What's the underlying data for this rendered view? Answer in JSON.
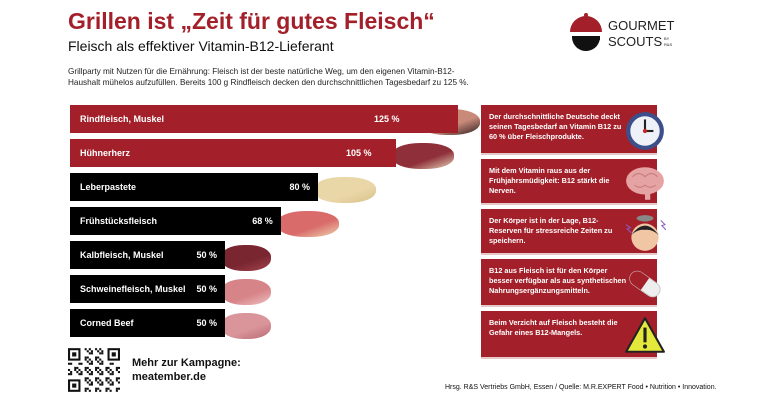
{
  "header": {
    "title": "Grillen ist „Zeit für gutes Fleisch“",
    "subtitle": "Fleisch als effektiver Vitamin-B12-Lieferant",
    "intro": "Grillparty mit Nutzen für die Ernährung: Fleisch ist der beste natürliche Weg, um den eigenen Vitamin-B12-Haushalt mühelos aufzufüllen. Bereits 100 g Rindfleisch decken den durchschnittlichen Tagesbedarf zu 125 %."
  },
  "logo": {
    "line1": "GOURMET",
    "line2": "SCOUTS",
    "suffix": "BY R&S"
  },
  "chart_data": {
    "type": "bar",
    "orientation": "horizontal",
    "unit": "%",
    "categories": [
      "Rindfleisch, Muskel",
      "Hühnerherz",
      "Leberpastete",
      "Frühstücksfleisch",
      "Kalbfleisch, Muskel",
      "Schweinefleisch, Muskel",
      "Corned Beef"
    ],
    "values": [
      125,
      105,
      80,
      68,
      50,
      50,
      50
    ],
    "value_labels": [
      "125 %",
      "105 %",
      "80 %",
      "68 %",
      "50 %",
      "50 %",
      "50 %"
    ],
    "bar_colors": [
      "#a3202a",
      "#a3202a",
      "#000000",
      "#000000",
      "#000000",
      "#000000",
      "#000000"
    ]
  },
  "facts": [
    {
      "text": "Der durchschnittliche Deutsche deckt seinen Tagesbedarf an Vitamin B12 zu 60 % über Fleischprodukte.",
      "icon": "clock-icon"
    },
    {
      "text": "Mit dem Vitamin raus aus der Frühjahrsmüdigkeit: B12 stärkt die Nerven.",
      "icon": "brain-icon"
    },
    {
      "text": "Der Körper ist in der Lage, B12-Reserven für stressreiche Zeiten zu speichern.",
      "icon": "stressed-person-icon"
    },
    {
      "text": "B12 aus Fleisch ist für den Körper besser verfügbar als aus synthetischen Nahrungsergänzungsmitteln.",
      "icon": "pill-icon"
    },
    {
      "text": "Beim Verzicht auf Fleisch besteht die Gefahr eines B12-Mangels.",
      "icon": "warning-icon"
    }
  ],
  "campaign": {
    "line1": "Mehr zur Kampagne:",
    "line2": "meatember.de"
  },
  "footer": "Hrsg. R&S Vertriebs GmbH, Essen / Quelle: M.R.EXPERT Food • Nutrition • Innovation.",
  "colors": {
    "accent": "#a3202a",
    "dark": "#000000"
  }
}
